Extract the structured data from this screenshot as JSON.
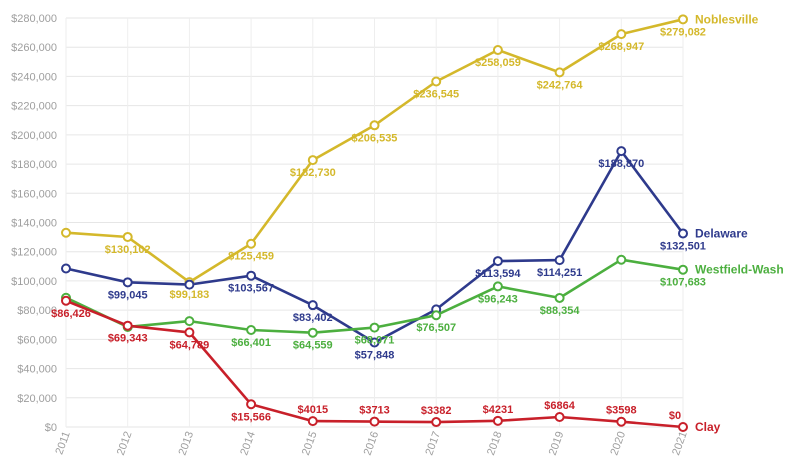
{
  "chart_data": {
    "type": "line",
    "title": "",
    "xlabel": "",
    "ylabel": "",
    "x": [
      "2011",
      "2012",
      "2013",
      "2014",
      "2015",
      "2016",
      "2017",
      "2018",
      "2019",
      "2020",
      "2021"
    ],
    "ylim": [
      0,
      280000
    ],
    "yticks": [
      0,
      20000,
      40000,
      60000,
      80000,
      100000,
      120000,
      140000,
      160000,
      180000,
      200000,
      220000,
      240000,
      260000,
      280000
    ],
    "ytick_labels": [
      "$0",
      "$20,000",
      "$40,000",
      "$60,000",
      "$80,000",
      "$100,000",
      "$120,000",
      "$140,000",
      "$160,000",
      "$180,000",
      "$200,000",
      "$220,000",
      "$240,000",
      "$260,000",
      "$280,000"
    ],
    "grid": true,
    "legend": "none",
    "series": [
      {
        "name": "Noblesville",
        "color": "#d4b82b",
        "values": [
          133000,
          130102,
          99183,
          125459,
          182730,
          206535,
          236545,
          258059,
          242764,
          268947,
          279082
        ],
        "labels": [
          "",
          "$130,102",
          "$99,183",
          "$125,459",
          "$182,730",
          "$206,535",
          "$236,545",
          "$258,059",
          "$242,764",
          "$268,947",
          "$279,082"
        ]
      },
      {
        "name": "Delaware",
        "color": "#2e3a8c",
        "values": [
          108500,
          99045,
          97500,
          103567,
          83402,
          57848,
          80500,
          113594,
          114251,
          188870,
          132501
        ],
        "labels": [
          "",
          "$99,045",
          "",
          "$103,567",
          "$83,402",
          "$57,848",
          "",
          "$113,594",
          "$114,251",
          "$188,870",
          "$132,501"
        ]
      },
      {
        "name": "Westfield-Wash",
        "color": "#4caf3f",
        "values": [
          88500,
          68500,
          72500,
          66401,
          64559,
          68071,
          76507,
          96243,
          88354,
          114500,
          107683
        ],
        "labels": [
          "",
          "",
          "",
          "$66,401",
          "$64,559",
          "$68,071",
          "$76,507",
          "$96,243",
          "$88,354",
          "",
          "$107,683"
        ]
      },
      {
        "name": "Clay",
        "color": "#c8202a",
        "values": [
          86426,
          69343,
          64789,
          15566,
          4015,
          3713,
          3382,
          4231,
          6864,
          3598,
          0
        ],
        "labels": [
          "$86,426",
          "$69,343",
          "$64,789",
          "$15,566",
          "$4015",
          "$3713",
          "$3382",
          "$4231",
          "$6864",
          "$3598",
          "$0"
        ]
      }
    ]
  }
}
